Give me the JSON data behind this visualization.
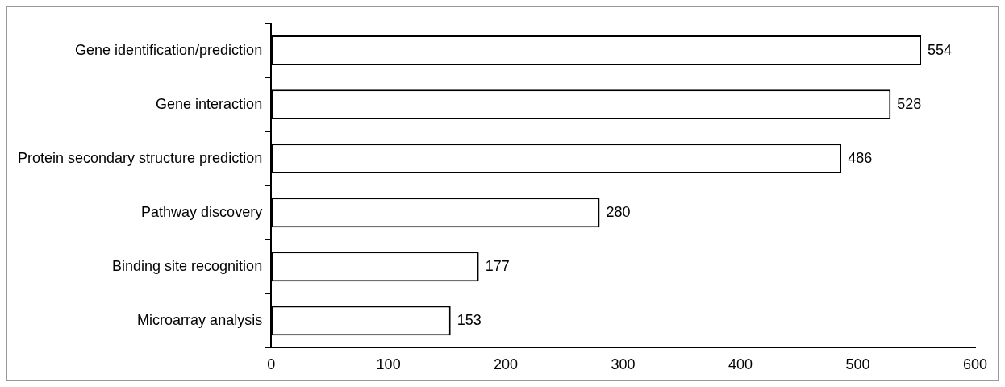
{
  "chart_data": {
    "type": "bar",
    "orientation": "horizontal",
    "categories": [
      "Gene identification/prediction",
      "Gene interaction",
      "Protein secondary structure prediction",
      "Pathway discovery",
      "Binding site recognition",
      "Microarray analysis"
    ],
    "values": [
      554,
      528,
      486,
      280,
      177,
      153
    ],
    "color": "#ffffff",
    "xlim": [
      0,
      600
    ],
    "xticks": [
      0,
      100,
      200,
      300,
      400,
      500,
      600
    ],
    "grid": false,
    "legend": false,
    "data_labels": true
  }
}
